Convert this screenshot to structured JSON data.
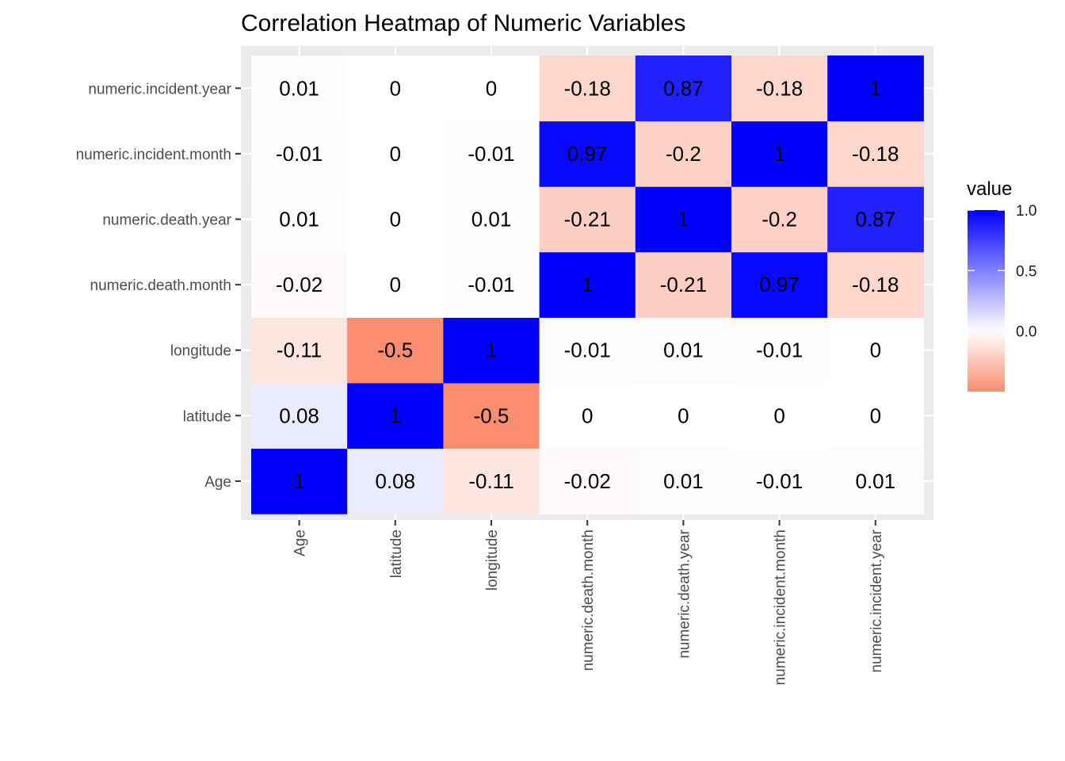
{
  "chart_data": {
    "type": "heatmap",
    "title": "Correlation Heatmap of Numeric Variables",
    "xlabel": "",
    "ylabel": "",
    "x_categories": [
      "Age",
      "latitude",
      "longitude",
      "numeric.death.month",
      "numeric.death.year",
      "numeric.incident.month",
      "numeric.incident.year"
    ],
    "y_categories": [
      "Age",
      "latitude",
      "longitude",
      "numeric.death.month",
      "numeric.death.year",
      "numeric.incident.month",
      "numeric.incident.year"
    ],
    "values": [
      [
        1,
        0.08,
        -0.11,
        -0.02,
        0.01,
        -0.01,
        0.01
      ],
      [
        0.08,
        1,
        -0.5,
        0,
        0,
        0,
        0
      ],
      [
        -0.11,
        -0.5,
        1,
        -0.01,
        0.01,
        -0.01,
        0
      ],
      [
        -0.02,
        0,
        -0.01,
        1,
        -0.21,
        0.97,
        -0.18
      ],
      [
        0.01,
        0,
        0.01,
        -0.21,
        1,
        -0.2,
        0.87
      ],
      [
        -0.01,
        0,
        -0.01,
        0.97,
        -0.2,
        1,
        -0.18
      ],
      [
        0.01,
        0,
        0,
        -0.18,
        0.87,
        -0.18,
        1
      ]
    ],
    "legend": {
      "title": "value",
      "ticks": [
        "1.0",
        "0.5",
        "0.0"
      ],
      "tick_values": [
        1.0,
        0.5,
        0.0
      ],
      "range": [
        -0.5,
        1.0
      ],
      "placement": "right"
    },
    "colors": {
      "low": "#fa8c70",
      "mid": "#ffffff",
      "high": "#0000ff",
      "panel_background": "#ebebeb",
      "grid": "#ffffff"
    }
  }
}
